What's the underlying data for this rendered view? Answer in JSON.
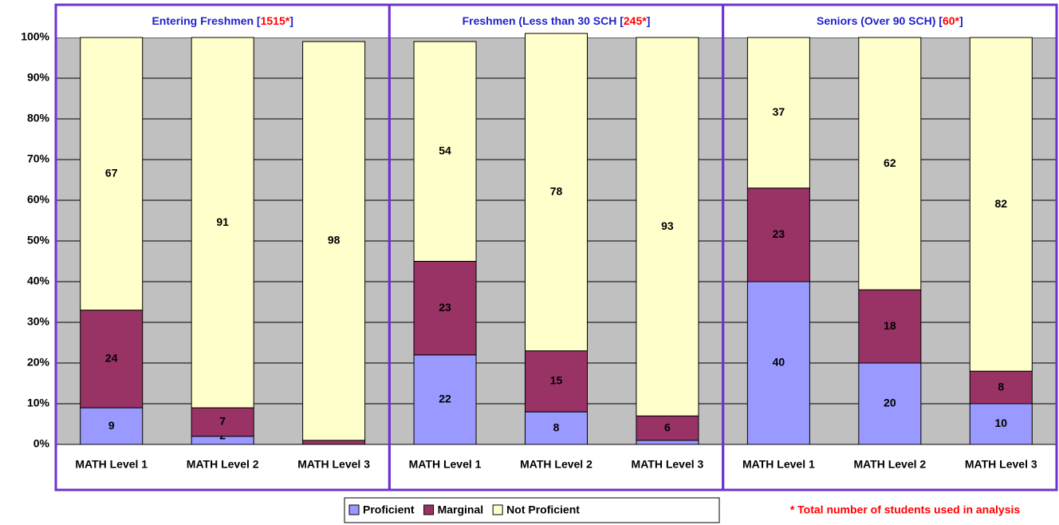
{
  "chart_data": {
    "type": "bar",
    "stacked": true,
    "ylim": [
      0,
      100
    ],
    "yticks": [
      {
        "value": 0,
        "label": "0%"
      },
      {
        "value": 10,
        "label": "10%"
      },
      {
        "value": 20,
        "label": "20%"
      },
      {
        "value": 30,
        "label": "30%"
      },
      {
        "value": 40,
        "label": "40%"
      },
      {
        "value": 50,
        "label": "50%"
      },
      {
        "value": 60,
        "label": "60%"
      },
      {
        "value": 70,
        "label": "70%"
      },
      {
        "value": 80,
        "label": "80%"
      },
      {
        "value": 90,
        "label": "90%"
      },
      {
        "value": 100,
        "label": "100%"
      }
    ],
    "grid": true,
    "series": [
      {
        "name": "Proficient",
        "color": "#9999ff"
      },
      {
        "name": "Marginal",
        "color": "#993366"
      },
      {
        "name": "Not Proficient",
        "color": "#ffffcc"
      }
    ],
    "panels": [
      {
        "title": [
          "Entering Freshmen [",
          "1515*",
          "]"
        ],
        "categories": [
          "MATH  Level 1",
          "MATH  Level 2",
          "MATH  Level 3"
        ],
        "values": [
          [
            9,
            2,
            0
          ],
          [
            24,
            7,
            1
          ],
          [
            67,
            91,
            98
          ]
        ]
      },
      {
        "title": [
          "Freshmen (Less than 30 SCH [",
          "245*",
          "]"
        ],
        "categories": [
          "MATH  Level 1",
          "MATH  Level 2",
          "MATH  Level 3"
        ],
        "values": [
          [
            22,
            8,
            1
          ],
          [
            23,
            15,
            6
          ],
          [
            54,
            78,
            93
          ]
        ]
      },
      {
        "title": [
          "Seniors (Over 90 SCH) [",
          "60*",
          "]"
        ],
        "categories": [
          "MATH  Level 1",
          "MATH  Level 2",
          "MATH  Level 3"
        ],
        "values": [
          [
            40,
            20,
            10
          ],
          [
            23,
            18,
            8
          ],
          [
            37,
            62,
            82
          ]
        ]
      }
    ],
    "footnote": "* Total number of students used in analysis"
  }
}
